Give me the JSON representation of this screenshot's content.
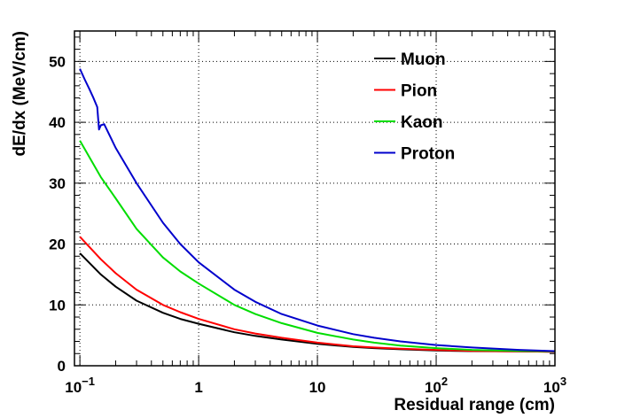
{
  "chart_data": {
    "type": "line",
    "xlabel": "Residual range (cm)",
    "ylabel": "dE/dx (MeV/cm)",
    "xscale": "log",
    "xlim": [
      0.09,
      1000
    ],
    "ylim": [
      0,
      55
    ],
    "grid": true,
    "legend_position": "top-right",
    "x_ticks": [
      {
        "value": 0.1,
        "base": "10",
        "exp": "−1"
      },
      {
        "value": 1,
        "base": "1",
        "exp": ""
      },
      {
        "value": 10,
        "base": "10",
        "exp": ""
      },
      {
        "value": 100,
        "base": "10",
        "exp": "2"
      },
      {
        "value": 1000,
        "base": "10",
        "exp": "3"
      }
    ],
    "y_ticks": [
      "0",
      "10",
      "20",
      "30",
      "40",
      "50"
    ],
    "series": [
      {
        "name": "Muon",
        "color": "#000000",
        "x": [
          0.1,
          0.15,
          0.2,
          0.3,
          0.5,
          0.7,
          1,
          2,
          3,
          5,
          10,
          20,
          30,
          50,
          100,
          200,
          500,
          1000
        ],
        "y": [
          18.5,
          15.0,
          13.0,
          10.7,
          8.7,
          7.7,
          6.9,
          5.5,
          4.9,
          4.3,
          3.6,
          3.1,
          2.9,
          2.7,
          2.5,
          2.4,
          2.35,
          2.3
        ]
      },
      {
        "name": "Pion",
        "color": "#ff0000",
        "x": [
          0.1,
          0.15,
          0.2,
          0.3,
          0.5,
          0.7,
          1,
          2,
          3,
          5,
          10,
          20,
          30,
          50,
          100,
          200,
          500,
          1000
        ],
        "y": [
          21.2,
          17.5,
          15.2,
          12.5,
          10.0,
          8.8,
          7.7,
          6.0,
          5.3,
          4.6,
          3.8,
          3.2,
          3.0,
          2.8,
          2.6,
          2.45,
          2.35,
          2.3
        ]
      },
      {
        "name": "Kaon",
        "color": "#00dd00",
        "x": [
          0.1,
          0.15,
          0.2,
          0.3,
          0.5,
          0.7,
          1,
          2,
          3,
          5,
          10,
          20,
          30,
          50,
          100,
          200,
          500,
          1000
        ],
        "y": [
          37.0,
          31.0,
          27.5,
          22.5,
          17.8,
          15.5,
          13.5,
          10.0,
          8.5,
          7.0,
          5.4,
          4.3,
          3.8,
          3.3,
          2.9,
          2.6,
          2.45,
          2.35
        ]
      },
      {
        "name": "Proton",
        "color": "#0000cc",
        "x": [
          0.1,
          0.11,
          0.12,
          0.13,
          0.14,
          0.145,
          0.15,
          0.16,
          0.2,
          0.3,
          0.5,
          0.7,
          1,
          2,
          3,
          5,
          10,
          20,
          30,
          50,
          100,
          200,
          500,
          1000
        ],
        "y": [
          48.8,
          47.0,
          45.5,
          44.0,
          42.5,
          38.8,
          39.5,
          39.7,
          35.8,
          30.0,
          23.5,
          20.0,
          17.0,
          12.5,
          10.5,
          8.5,
          6.6,
          5.2,
          4.6,
          4.0,
          3.4,
          3.0,
          2.6,
          2.4
        ]
      }
    ]
  }
}
